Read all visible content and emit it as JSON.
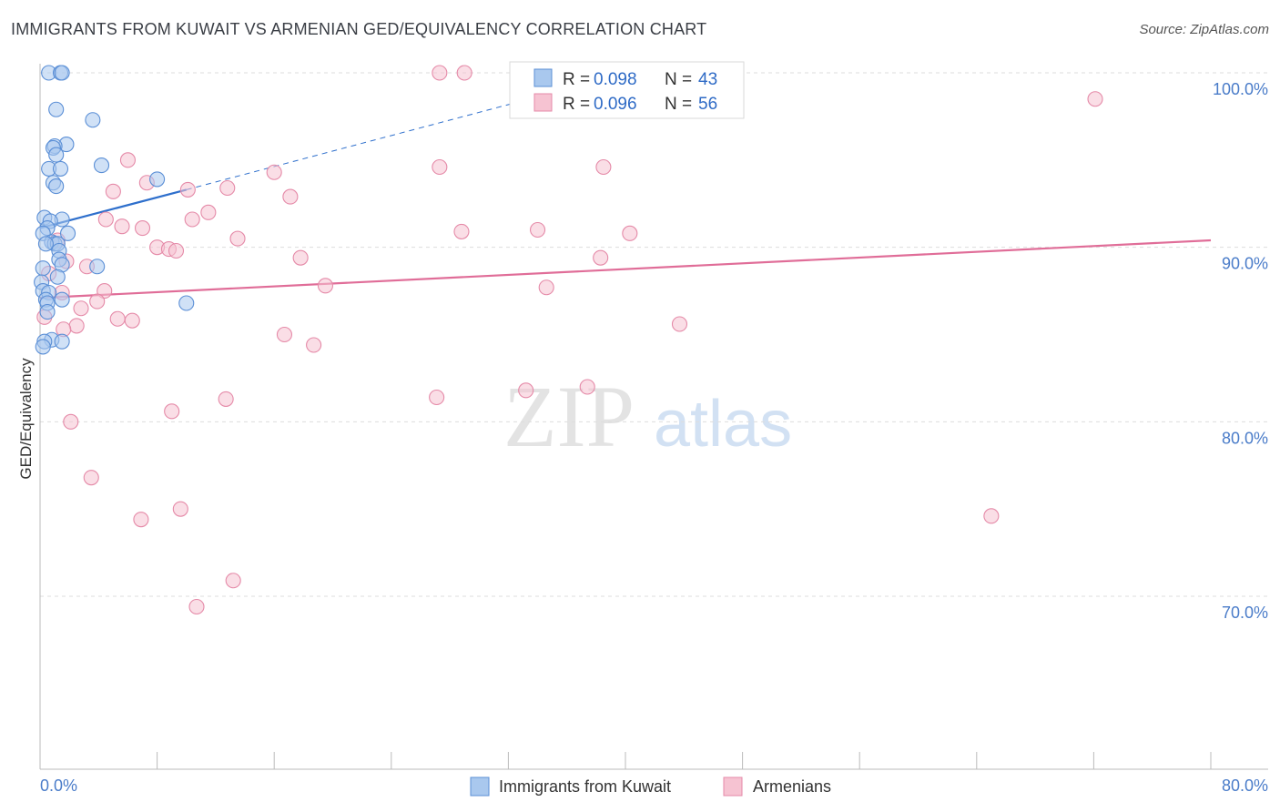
{
  "header": {
    "title": "IMMIGRANTS FROM KUWAIT VS ARMENIAN GED/EQUIVALENCY CORRELATION CHART",
    "source": "Source: ZipAtlas.com"
  },
  "watermark": {
    "zip": "ZIP",
    "atlas": "atlas"
  },
  "legend": {
    "rows": [
      {
        "r_label": "R = ",
        "r_value": "0.098",
        "n_label": "N = ",
        "n_value": "43"
      },
      {
        "r_label": "R = ",
        "r_value": "0.096",
        "n_label": "N = ",
        "n_value": "56"
      }
    ]
  },
  "colors": {
    "kuwait_fill": "#a9c8ee",
    "kuwait_stroke": "#5b8fd6",
    "kuwait_line": "#2e6fcc",
    "armenian_fill": "#f6c3d2",
    "armenian_stroke": "#e58aa8",
    "armenian_line": "#e06d98",
    "grid": "#dddddd",
    "axis": "#bbbbbb"
  },
  "chart_data": {
    "type": "scatter",
    "title": "IMMIGRANTS FROM KUWAIT VS ARMENIAN GED/EQUIVALENCY CORRELATION CHART",
    "ylabel": "GED/Equivalency",
    "xlim": [
      0,
      80
    ],
    "ylim": [
      60,
      100
    ],
    "x_tick_labels": [
      "0.0%",
      "80.0%"
    ],
    "y_ticks": [
      70,
      80,
      90,
      100
    ],
    "y_tick_labels": [
      "70.0%",
      "80.0%",
      "90.0%",
      "100.0%"
    ],
    "grid": true,
    "legend_position": "top-center",
    "series": [
      {
        "name": "Immigrants from Kuwait",
        "r": 0.098,
        "n": 43,
        "trend": {
          "x0": 0,
          "y0": 91.1,
          "x1": 10,
          "y1": 93.3,
          "dashed_to_x": 33,
          "dashed_to_y": 98.4
        },
        "points": [
          [
            0.6,
            100.0
          ],
          [
            1.4,
            100.0
          ],
          [
            1.5,
            100.0
          ],
          [
            1.1,
            97.9
          ],
          [
            3.6,
            97.3
          ],
          [
            1.8,
            95.9
          ],
          [
            1.0,
            95.8
          ],
          [
            0.9,
            95.7
          ],
          [
            1.1,
            95.3
          ],
          [
            4.2,
            94.7
          ],
          [
            0.6,
            94.5
          ],
          [
            1.4,
            94.5
          ],
          [
            8.0,
            93.9
          ],
          [
            0.9,
            93.7
          ],
          [
            1.1,
            93.5
          ],
          [
            0.3,
            91.7
          ],
          [
            1.5,
            91.6
          ],
          [
            0.7,
            91.5
          ],
          [
            0.5,
            91.1
          ],
          [
            0.2,
            90.8
          ],
          [
            1.9,
            90.8
          ],
          [
            0.8,
            90.3
          ],
          [
            1.0,
            90.2
          ],
          [
            1.2,
            90.2
          ],
          [
            0.4,
            90.2
          ],
          [
            1.3,
            89.8
          ],
          [
            1.3,
            89.3
          ],
          [
            1.5,
            89.0
          ],
          [
            3.9,
            88.9
          ],
          [
            0.2,
            88.8
          ],
          [
            1.2,
            88.3
          ],
          [
            0.1,
            88.0
          ],
          [
            0.2,
            87.5
          ],
          [
            0.6,
            87.4
          ],
          [
            0.4,
            87.0
          ],
          [
            1.5,
            87.0
          ],
          [
            0.5,
            86.8
          ],
          [
            10.0,
            86.8
          ],
          [
            0.5,
            86.3
          ],
          [
            0.8,
            84.7
          ],
          [
            1.5,
            84.6
          ],
          [
            0.3,
            84.6
          ],
          [
            0.2,
            84.3
          ]
        ]
      },
      {
        "name": "Armenians",
        "r": 0.096,
        "n": 56,
        "trend": {
          "x0": 0,
          "y0": 87.1,
          "x1": 80,
          "y1": 90.4
        },
        "points": [
          [
            27.3,
            100.0
          ],
          [
            29.0,
            100.0
          ],
          [
            72.1,
            98.5
          ],
          [
            6.0,
            95.0
          ],
          [
            27.3,
            94.6
          ],
          [
            38.5,
            94.6
          ],
          [
            16.0,
            94.3
          ],
          [
            7.3,
            93.7
          ],
          [
            12.8,
            93.4
          ],
          [
            10.1,
            93.3
          ],
          [
            5.0,
            93.2
          ],
          [
            17.1,
            92.9
          ],
          [
            11.5,
            92.0
          ],
          [
            10.4,
            91.6
          ],
          [
            4.5,
            91.6
          ],
          [
            7.0,
            91.1
          ],
          [
            5.6,
            91.2
          ],
          [
            28.8,
            90.9
          ],
          [
            34.0,
            91.0
          ],
          [
            40.3,
            90.8
          ],
          [
            13.5,
            90.5
          ],
          [
            1.2,
            90.4
          ],
          [
            8.0,
            90.0
          ],
          [
            8.8,
            89.9
          ],
          [
            9.3,
            89.8
          ],
          [
            17.8,
            89.4
          ],
          [
            38.3,
            89.4
          ],
          [
            1.8,
            89.2
          ],
          [
            3.2,
            88.9
          ],
          [
            0.6,
            88.5
          ],
          [
            19.5,
            87.8
          ],
          [
            34.6,
            87.7
          ],
          [
            4.4,
            87.5
          ],
          [
            1.5,
            87.4
          ],
          [
            3.9,
            86.9
          ],
          [
            2.8,
            86.5
          ],
          [
            0.3,
            86.0
          ],
          [
            5.3,
            85.9
          ],
          [
            6.3,
            85.8
          ],
          [
            43.7,
            85.6
          ],
          [
            2.5,
            85.5
          ],
          [
            16.7,
            85.0
          ],
          [
            18.7,
            84.4
          ],
          [
            37.4,
            82.0
          ],
          [
            33.2,
            81.8
          ],
          [
            27.1,
            81.4
          ],
          [
            12.7,
            81.3
          ],
          [
            9.0,
            80.6
          ],
          [
            2.1,
            80.0
          ],
          [
            3.5,
            76.8
          ],
          [
            65.0,
            74.6
          ],
          [
            9.6,
            75.0
          ],
          [
            6.9,
            74.4
          ],
          [
            13.2,
            70.9
          ],
          [
            10.7,
            69.4
          ],
          [
            1.6,
            85.3
          ]
        ]
      }
    ]
  },
  "bottom_legend": {
    "items": [
      {
        "label": "Immigrants from Kuwait"
      },
      {
        "label": "Armenians"
      }
    ]
  }
}
